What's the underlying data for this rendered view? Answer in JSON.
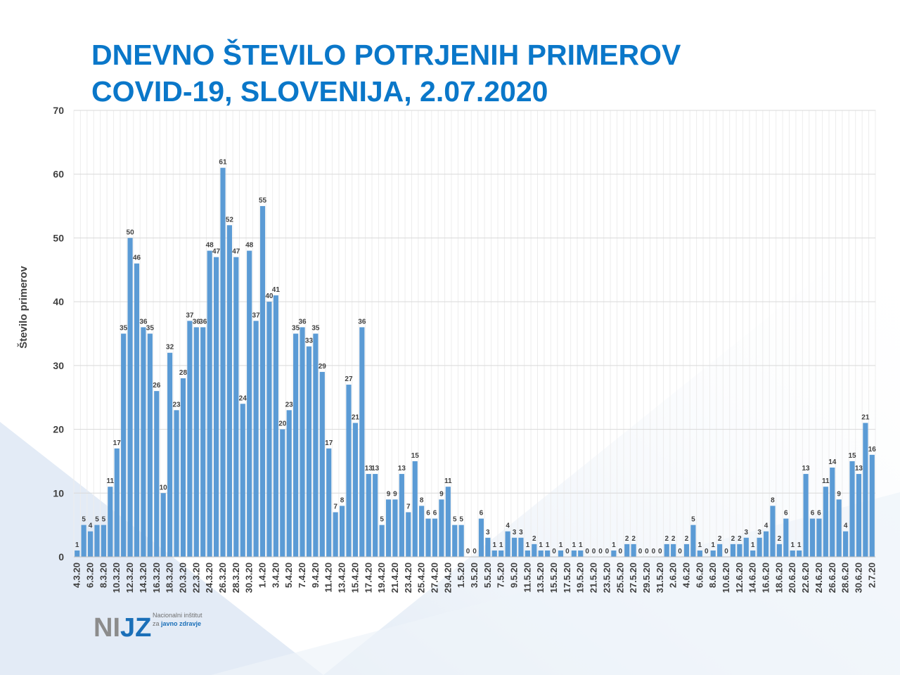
{
  "chart_data": {
    "type": "bar",
    "title": [
      "DNEVNO ŠTEVILO POTRJENIH PRIMEROV",
      "COVID-19, SLOVENIJA, 2.07.2020"
    ],
    "y_label": "Število primerov",
    "categories": [
      "4.3.20",
      null,
      "6.3.20",
      null,
      "8.3.20",
      null,
      "10.3.20",
      null,
      "12.3.20",
      null,
      "14.3.20",
      null,
      "16.3.20",
      null,
      "18.3.20",
      null,
      "20.3.20",
      null,
      "22.3.20",
      null,
      "24.3.20",
      null,
      "26.3.20",
      null,
      "28.3.20",
      null,
      "30.3.20",
      null,
      "1.4.20",
      null,
      "3.4.20",
      null,
      "5.4.20",
      null,
      "7.4.20",
      null,
      "9.4.20",
      null,
      "11.4.20",
      null,
      "13.4.20",
      null,
      "15.4.20",
      null,
      "17.4.20",
      null,
      "19.4.20",
      null,
      "21.4.20",
      null,
      "23.4.20",
      null,
      "25.4.20",
      null,
      "27.4.20",
      null,
      "29.4.20",
      null,
      "1.5.20",
      null,
      "3.5.20",
      null,
      "5.5.20",
      null,
      "7.5.20",
      null,
      "9.5.20",
      null,
      "11.5.20",
      null,
      "13.5.20",
      null,
      "15.5.20",
      null,
      "17.5.20",
      null,
      "19.5.20",
      null,
      "21.5.20",
      null,
      "23.5.20",
      null,
      "25.5.20",
      null,
      "27.5.20",
      null,
      "29.5.20",
      null,
      "31.5.20",
      null,
      "2.6.20",
      null,
      "4.6.20",
      null,
      "6.6.20",
      null,
      "8.6.20",
      null,
      "10.6.20",
      null,
      "12.6.20",
      null,
      "14.6.20",
      null,
      "16.6.20",
      null,
      "18.6.20",
      null,
      "20.6.20",
      null,
      "22.6.20",
      null,
      "24.6.20",
      null,
      "26.6.20",
      null,
      "28.6.20",
      null,
      "30.6.20",
      null,
      "2.7.20"
    ],
    "values": [
      1,
      5,
      4,
      5,
      5,
      11,
      17,
      35,
      50,
      46,
      36,
      35,
      26,
      10,
      32,
      23,
      28,
      37,
      36,
      36,
      48,
      47,
      61,
      52,
      47,
      24,
      48,
      37,
      55,
      40,
      41,
      20,
      23,
      35,
      36,
      33,
      35,
      29,
      17,
      7,
      8,
      27,
      21,
      36,
      13,
      13,
      5,
      9,
      9,
      13,
      7,
      15,
      8,
      6,
      6,
      9,
      11,
      5,
      5,
      0,
      0,
      6,
      3,
      1,
      1,
      4,
      3,
      3,
      1,
      2,
      1,
      1,
      0,
      1,
      0,
      1,
      1,
      0,
      0,
      0,
      0,
      1,
      0,
      2,
      2,
      0,
      0,
      0,
      0,
      2,
      2,
      0,
      2,
      5,
      1,
      0,
      1,
      2,
      0,
      2,
      2,
      3,
      1,
      3,
      4,
      8,
      2,
      6,
      1,
      1,
      13,
      6,
      6,
      11,
      14,
      9,
      4,
      15,
      13,
      21,
      16
    ],
    "color": "#5b9bd5",
    "ylim": [
      0,
      70
    ],
    "yticks": [
      0,
      10,
      20,
      30,
      40,
      50,
      60,
      70
    ],
    "grid": true
  },
  "logo": {
    "mark": [
      "NI",
      "JZ"
    ],
    "lines": [
      "Nacionalni inštitut",
      "za",
      "javno zdravje"
    ]
  }
}
